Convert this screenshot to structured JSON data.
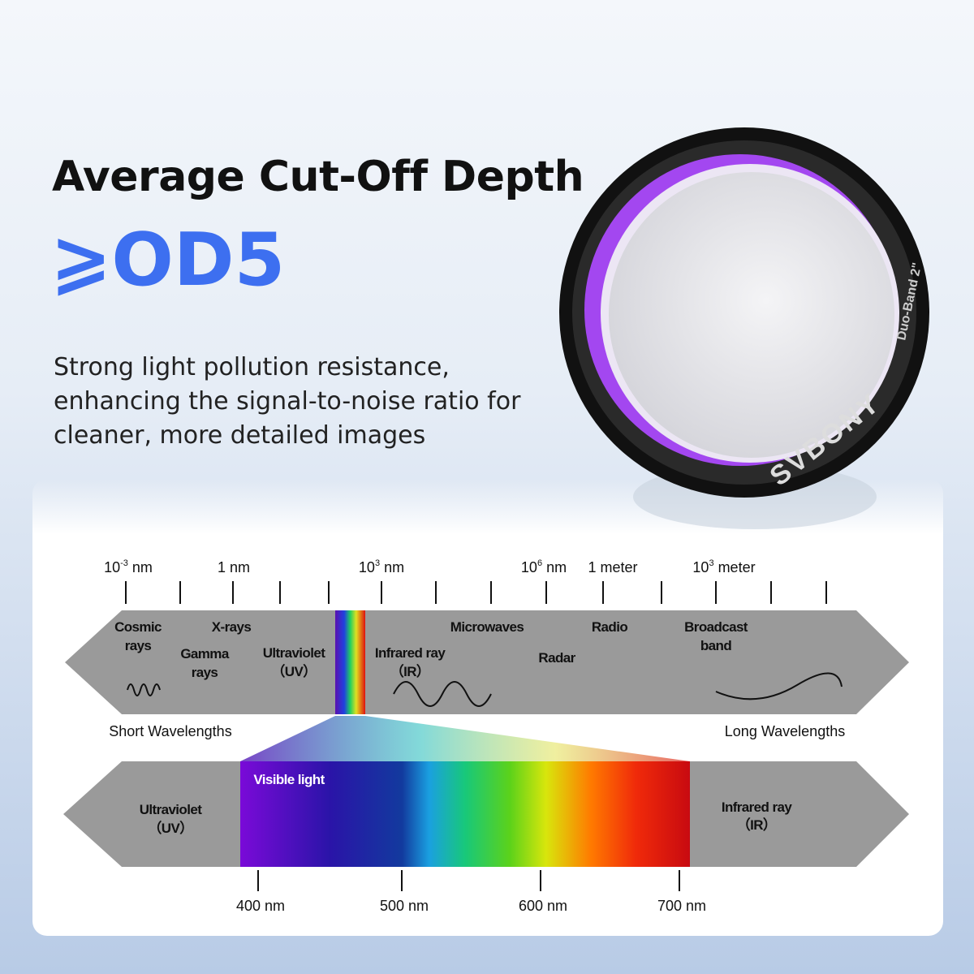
{
  "header": {
    "title": "Average Cut-Off Depth",
    "highlight": "⩾OD5",
    "description": [
      "Strong light pollution resistance,",
      "enhancing the signal-to-noise ratio for",
      "cleaner, more detailed images"
    ]
  },
  "product": {
    "brand": "SVBONY",
    "model": "Duo-Band 2\""
  },
  "spectrum": {
    "scale_labels": [
      {
        "base": "10",
        "sup": "-3",
        "rest": " nm"
      },
      {
        "base": "1 nm"
      },
      {
        "base": "10",
        "sup": "3",
        "rest": " nm"
      },
      {
        "base": "10",
        "sup": "6",
        "rest": " nm"
      },
      {
        "base": "1 meter"
      },
      {
        "base": "10",
        "sup": "3",
        "rest": " meter"
      }
    ],
    "bands": [
      [
        "Cosmic",
        "rays"
      ],
      [
        "X-rays"
      ],
      [
        "Gamma",
        "rays"
      ],
      [
        "Ultraviolet",
        "（UV）"
      ],
      [
        "Infrared ray",
        "（IR）"
      ],
      [
        "Microwaves"
      ],
      [
        "Radar"
      ],
      [
        "Radio"
      ],
      [
        "Broadcast",
        "band"
      ]
    ],
    "short": "Short Wavelengths",
    "long": "Long Wavelengths"
  },
  "visible": {
    "title": "Visible light",
    "left": [
      "Ultraviolet",
      "（UV）"
    ],
    "right": [
      "Infrared ray",
      "（IR）"
    ],
    "ticks": [
      "400 nm",
      "500 nm",
      "600 nm",
      "700 nm"
    ]
  }
}
